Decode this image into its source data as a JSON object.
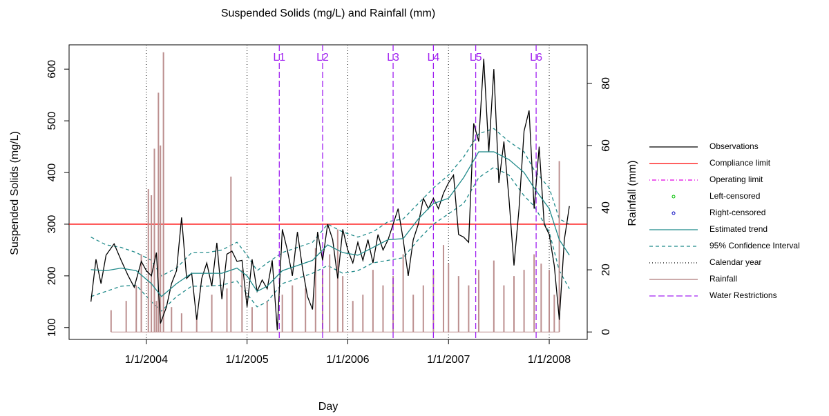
{
  "chart_data": {
    "type": "line",
    "title": "Suspended Solids (mg/L) and Rainfall (mm)",
    "xlabel": "Day",
    "ylabel": "Suspended Solids (mg/L)",
    "y2label": "Rainfall (mm)",
    "xlim": [
      2003.233,
      2008.377
    ],
    "xticks": [
      {
        "value": 2004,
        "label": "1/1/2004"
      },
      {
        "value": 2005,
        "label": "1/1/2005"
      },
      {
        "value": 2006,
        "label": "1/1/2006"
      },
      {
        "value": 2007,
        "label": "1/1/2007"
      },
      {
        "value": 2008,
        "label": "1/1/2008"
      }
    ],
    "ylim": [
      77,
      647
    ],
    "yticks": [
      100,
      200,
      300,
      400,
      500,
      600
    ],
    "y2lim": [
      -2.4,
      92.4
    ],
    "y2ticks": [
      0,
      20,
      40,
      60,
      80
    ],
    "legend": "right",
    "series": [
      {
        "name": "Observations",
        "color": "#000000",
        "style": "solid",
        "x": [
          2003.45,
          2003.5,
          2003.55,
          2003.6,
          2003.68,
          2003.75,
          2003.82,
          2003.88,
          2003.95,
          2004.0,
          2004.05,
          2004.1,
          2004.14,
          2004.2,
          2004.25,
          2004.3,
          2004.35,
          2004.4,
          2004.45,
          2004.5,
          2004.55,
          2004.6,
          2004.65,
          2004.7,
          2004.75,
          2004.8,
          2004.85,
          2004.9,
          2004.95,
          2005.0,
          2005.05,
          2005.1,
          2005.15,
          2005.2,
          2005.25,
          2005.3,
          2005.35,
          2005.4,
          2005.45,
          2005.5,
          2005.55,
          2005.6,
          2005.65,
          2005.7,
          2005.75,
          2005.8,
          2005.85,
          2005.9,
          2005.95,
          2006.0,
          2006.05,
          2006.1,
          2006.15,
          2006.2,
          2006.25,
          2006.3,
          2006.35,
          2006.4,
          2006.45,
          2006.5,
          2006.55,
          2006.6,
          2006.65,
          2006.7,
          2006.75,
          2006.8,
          2006.85,
          2006.9,
          2006.95,
          2007.0,
          2007.05,
          2007.1,
          2007.15,
          2007.2,
          2007.25,
          2007.3,
          2007.35,
          2007.4,
          2007.45,
          2007.5,
          2007.55,
          2007.6,
          2007.65,
          2007.7,
          2007.75,
          2007.8,
          2007.85,
          2007.9,
          2007.95,
          2008.0,
          2008.05,
          2008.1,
          2008.15,
          2008.2
        ],
        "values": [
          150,
          232,
          185,
          240,
          262,
          230,
          200,
          178,
          228,
          210,
          200,
          245,
          108,
          140,
          185,
          210,
          313,
          195,
          205,
          115,
          195,
          225,
          180,
          264,
          155,
          242,
          248,
          228,
          230,
          140,
          232,
          170,
          192,
          175,
          230,
          95,
          290,
          250,
          200,
          285,
          215,
          160,
          135,
          285,
          230,
          300,
          270,
          195,
          290,
          250,
          225,
          265,
          230,
          270,
          225,
          280,
          250,
          270,
          300,
          330,
          270,
          200,
          270,
          300,
          350,
          330,
          350,
          330,
          360,
          380,
          395,
          280,
          275,
          265,
          495,
          460,
          620,
          440,
          600,
          380,
          460,
          350,
          220,
          330,
          480,
          520,
          330,
          450,
          300,
          280,
          220,
          115,
          270,
          335
        ]
      },
      {
        "name": "Compliance limit",
        "color": "#ff0000",
        "style": "solid",
        "value": 300
      },
      {
        "name": "Operating limit",
        "color": "#e000e0",
        "style": "dotdash"
      },
      {
        "name": "Left-censored",
        "color": "#00c000",
        "style": "point"
      },
      {
        "name": "Right-censored",
        "color": "#0000c0",
        "style": "point"
      },
      {
        "name": "Estimated trend",
        "color": "#1f8a8a",
        "style": "solid",
        "x": [
          2003.45,
          2003.6,
          2003.75,
          2003.9,
          2004.05,
          2004.15,
          2004.3,
          2004.45,
          2004.6,
          2004.75,
          2004.9,
          2005.0,
          2005.1,
          2005.2,
          2005.35,
          2005.5,
          2005.65,
          2005.8,
          2005.95,
          2006.1,
          2006.25,
          2006.4,
          2006.55,
          2006.7,
          2006.85,
          2007.0,
          2007.15,
          2007.3,
          2007.45,
          2007.6,
          2007.75,
          2007.85,
          2008.0,
          2008.1,
          2008.2
        ],
        "values": [
          212,
          210,
          215,
          210,
          185,
          160,
          185,
          205,
          205,
          205,
          215,
          200,
          170,
          180,
          210,
          220,
          230,
          260,
          245,
          240,
          255,
          270,
          272,
          310,
          340,
          350,
          390,
          440,
          440,
          425,
          400,
          370,
          330,
          270,
          240
        ]
      },
      {
        "name": "95% Confidence Interval",
        "color": "#1f8a8a",
        "style": "dashed",
        "x": [
          2003.45,
          2003.6,
          2003.75,
          2003.9,
          2004.05,
          2004.15,
          2004.3,
          2004.45,
          2004.6,
          2004.75,
          2004.9,
          2005.0,
          2005.1,
          2005.2,
          2005.35,
          2005.5,
          2005.65,
          2005.8,
          2005.95,
          2006.1,
          2006.25,
          2006.4,
          2006.55,
          2006.7,
          2006.85,
          2007.0,
          2007.15,
          2007.3,
          2007.45,
          2007.6,
          2007.75,
          2007.85,
          2008.0,
          2008.1,
          2008.2
        ],
        "lower": [
          160,
          170,
          180,
          182,
          150,
          132,
          160,
          180,
          180,
          182,
          190,
          165,
          140,
          150,
          185,
          195,
          205,
          220,
          205,
          210,
          225,
          230,
          235,
          270,
          300,
          320,
          340,
          390,
          410,
          395,
          355,
          335,
          285,
          210,
          175
        ],
        "upper": [
          275,
          260,
          255,
          245,
          230,
          200,
          215,
          245,
          245,
          250,
          265,
          240,
          210,
          225,
          245,
          255,
          265,
          300,
          285,
          275,
          285,
          305,
          310,
          340,
          370,
          395,
          430,
          475,
          485,
          460,
          440,
          405,
          370,
          310,
          300
        ]
      },
      {
        "name": "Calendar year",
        "color": "#000000",
        "style": "dotted"
      },
      {
        "name": "Rainfall",
        "color": "#bc8f8f",
        "style": "spike",
        "axis": "y2",
        "x": [
          2003.65,
          2003.8,
          2003.9,
          2003.95,
          2004.02,
          2004.05,
          2004.08,
          2004.1,
          2004.12,
          2004.14,
          2004.17,
          2004.25,
          2004.35,
          2004.5,
          2004.65,
          2004.8,
          2004.84,
          2004.95,
          2005.05,
          2005.2,
          2005.35,
          2005.45,
          2005.58,
          2005.68,
          2005.75,
          2005.82,
          2005.9,
          2005.95,
          2006.05,
          2006.15,
          2006.25,
          2006.35,
          2006.45,
          2006.55,
          2006.65,
          2006.75,
          2006.85,
          2006.95,
          2007.0,
          2007.1,
          2007.2,
          2007.3,
          2007.45,
          2007.55,
          2007.65,
          2007.75,
          2007.85,
          2007.92,
          2008.0,
          2008.05,
          2008.1
        ],
        "values": [
          7,
          10,
          15,
          25,
          46,
          44,
          59,
          10,
          77,
          60,
          90,
          8,
          6,
          5,
          12,
          14,
          50,
          20,
          8,
          10,
          12,
          15,
          14,
          27,
          20,
          25,
          33,
          18,
          10,
          12,
          20,
          15,
          18,
          25,
          12,
          15,
          20,
          28,
          22,
          18,
          15,
          20,
          23,
          15,
          18,
          20,
          25,
          22,
          20,
          12,
          55
        ]
      },
      {
        "name": "Water Restrictions",
        "color": "#a020f0",
        "style": "longdash",
        "x": [
          2005.32,
          2005.75,
          2006.45,
          2006.85,
          2007.27,
          2007.87
        ],
        "labels": [
          "L1",
          "L2",
          "L3",
          "L4",
          "L5",
          "L6"
        ]
      }
    ]
  }
}
